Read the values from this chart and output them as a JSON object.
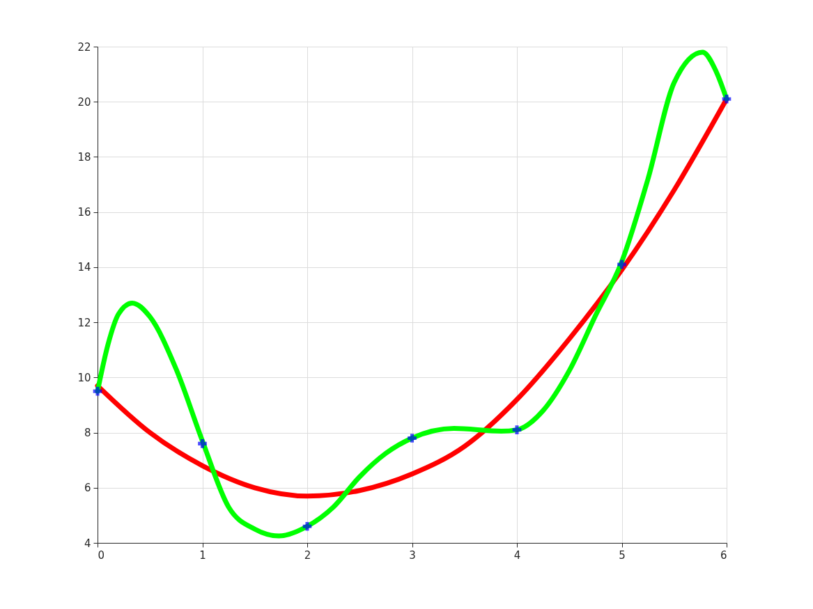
{
  "chart_data": {
    "type": "line",
    "xlim": [
      0,
      6
    ],
    "xticks": [
      0,
      1,
      2,
      3,
      4,
      5,
      6
    ],
    "ylim": [
      4,
      22
    ],
    "yticks": [
      4,
      6,
      8,
      10,
      12,
      14,
      16,
      18,
      20,
      22
    ],
    "grid": true,
    "line_style": "solid",
    "series": [
      {
        "color": "#ff0000",
        "marker": "none",
        "x": [
          0,
          0.5,
          1,
          1.5,
          2,
          2.5,
          3,
          3.5,
          4,
          4.5,
          5,
          5.5,
          6
        ],
        "values": [
          9.7,
          8.0,
          6.8,
          6.0,
          5.7,
          5.9,
          6.5,
          7.5,
          9.2,
          11.4,
          13.9,
          16.8,
          20.1
        ]
      },
      {
        "color": "#00ff00",
        "marker": "none",
        "x": [
          0,
          0.1,
          0.2,
          0.33,
          0.5,
          0.75,
          1,
          1.25,
          1.5,
          1.73,
          2,
          2.25,
          2.5,
          2.75,
          3,
          3.4,
          3.85,
          4,
          4.25,
          4.5,
          4.75,
          5,
          5.25,
          5.5,
          5.77,
          5.9,
          6
        ],
        "values": [
          9.5,
          11.2,
          12.3,
          12.7,
          12.2,
          10.3,
          7.7,
          5.3,
          4.5,
          4.25,
          4.6,
          5.3,
          6.4,
          7.25,
          7.8,
          8.15,
          8.05,
          8.1,
          8.8,
          10.25,
          12.25,
          14.2,
          17.2,
          20.7,
          21.8,
          21.1,
          20.1
        ]
      },
      {
        "type": "scatter",
        "color": "#0000ff",
        "marker": "cross",
        "x": [
          0,
          1,
          2,
          3,
          4,
          5,
          6
        ],
        "values": [
          9.5,
          7.6,
          4.6,
          7.8,
          8.1,
          14.1,
          20.1
        ]
      }
    ]
  }
}
